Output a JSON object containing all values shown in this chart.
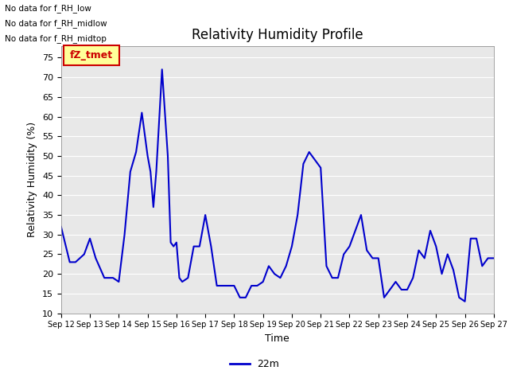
{
  "title": "Relativity Humidity Profile",
  "xlabel": "Time",
  "ylabel": "Relativity Humidity (%)",
  "ylim": [
    10,
    78
  ],
  "yticks": [
    10,
    15,
    20,
    25,
    30,
    35,
    40,
    45,
    50,
    55,
    60,
    65,
    70,
    75
  ],
  "line_color": "#0000cc",
  "line_width": 1.5,
  "legend_label": "22m",
  "no_data_labels": [
    "No data for f_RH_low",
    "No data for f_RH_midlow",
    "No data for f_RH_midtop"
  ],
  "legend_box_color": "#ffff99",
  "legend_box_edge": "#cc0000",
  "legend_text_color": "#cc0000",
  "legend_box_text": "fZ_tmet",
  "axes_bg_color": "#e8e8e8",
  "fig_bg_color": "#ffffff",
  "x_values": [
    12.0,
    12.3,
    12.5,
    12.8,
    13.0,
    13.2,
    13.5,
    13.8,
    14.0,
    14.2,
    14.4,
    14.6,
    14.8,
    15.0,
    15.1,
    15.2,
    15.3,
    15.4,
    15.5,
    15.6,
    15.7,
    15.8,
    15.9,
    16.0,
    16.1,
    16.2,
    16.4,
    16.6,
    16.8,
    17.0,
    17.2,
    17.4,
    17.6,
    17.8,
    18.0,
    18.2,
    18.4,
    18.6,
    18.8,
    19.0,
    19.2,
    19.4,
    19.6,
    19.8,
    20.0,
    20.2,
    20.4,
    20.6,
    20.8,
    21.0,
    21.2,
    21.4,
    21.6,
    21.8,
    22.0,
    22.2,
    22.4,
    22.6,
    22.8,
    23.0,
    23.2,
    23.4,
    23.6,
    23.8,
    24.0,
    24.2,
    24.4,
    24.6,
    24.8,
    25.0,
    25.2,
    25.4,
    25.6,
    25.8,
    26.0,
    26.2,
    26.4,
    26.6,
    26.8,
    27.0
  ],
  "y_values": [
    32,
    23,
    23,
    25,
    29,
    24,
    19,
    19,
    18,
    30,
    46,
    51,
    61,
    50,
    46,
    37,
    46,
    59,
    72,
    61,
    50,
    28,
    27,
    28,
    19,
    18,
    19,
    27,
    27,
    35,
    27,
    17,
    17,
    17,
    17,
    14,
    14,
    17,
    17,
    18,
    22,
    20,
    19,
    22,
    27,
    35,
    48,
    51,
    49,
    47,
    22,
    19,
    19,
    25,
    27,
    31,
    35,
    26,
    24,
    24,
    14,
    16,
    18,
    16,
    16,
    19,
    26,
    24,
    31,
    27,
    20,
    25,
    21,
    14,
    13,
    29,
    29,
    22,
    24,
    24
  ],
  "xtick_positions": [
    12,
    13,
    14,
    15,
    16,
    17,
    18,
    19,
    20,
    21,
    22,
    23,
    24,
    25,
    26,
    27
  ],
  "xtick_labels": [
    "Sep 12",
    "Sep 13",
    "Sep 14",
    "Sep 15",
    "Sep 16",
    "Sep 17",
    "Sep 18",
    "Sep 19",
    "Sep 20",
    "Sep 21",
    "Sep 22",
    "Sep 23",
    "Sep 24",
    "Sep 25",
    "Sep 26",
    "Sep 27"
  ]
}
